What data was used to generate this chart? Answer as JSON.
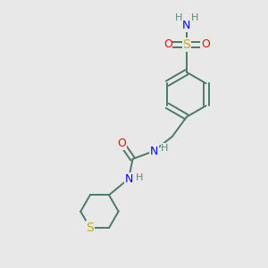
{
  "background_color": "#e8e8e8",
  "bond_color": "#4a7a6a",
  "atom_colors": {
    "N": "#0000ff",
    "O": "#ff0000",
    "S": "#ccaa00",
    "H": "#5a8a7a",
    "C": "#4a7a6a"
  },
  "figsize": [
    3.0,
    3.0
  ],
  "dpi": 100,
  "lw": 1.4
}
